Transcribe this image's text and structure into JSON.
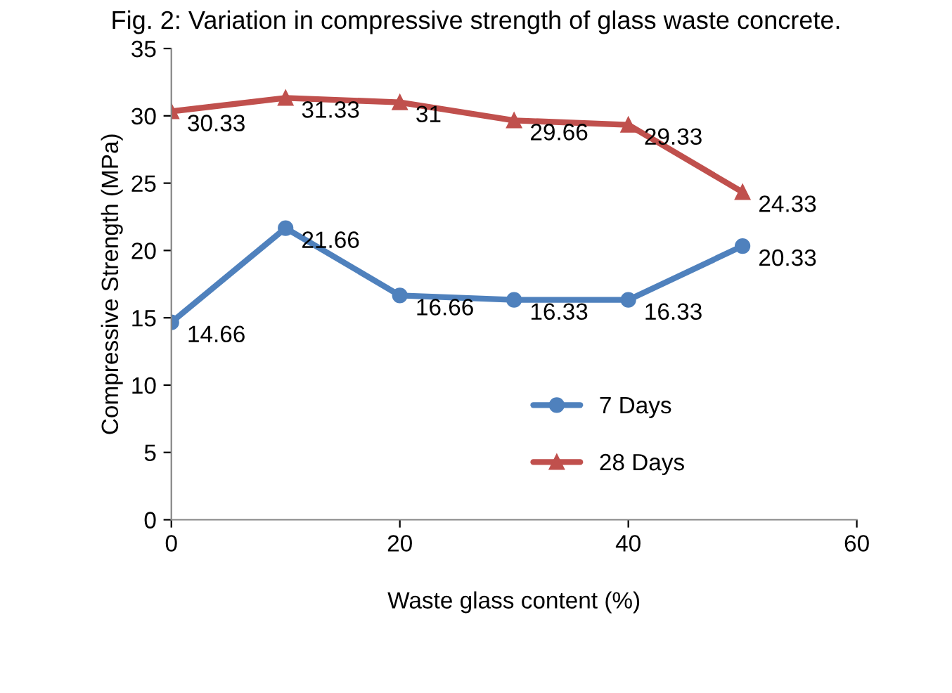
{
  "chart_data": {
    "type": "line",
    "title": "Fig. 2: Variation in compressive strength of glass waste concrete.",
    "xlabel": "Waste glass content (%)",
    "ylabel": "Compressive Strength (MPa)",
    "x": [
      0,
      10,
      20,
      30,
      40,
      50
    ],
    "series": [
      {
        "name": "7 Days",
        "color": "#4f81bd",
        "marker": "circle",
        "values": [
          14.66,
          21.66,
          16.66,
          16.33,
          16.33,
          20.33
        ]
      },
      {
        "name": "28 Days",
        "color": "#c0504d",
        "marker": "triangle",
        "values": [
          30.33,
          31.33,
          31,
          29.66,
          29.33,
          24.33
        ]
      }
    ],
    "xlim": [
      0,
      60
    ],
    "xticks": [
      0,
      20,
      40,
      60
    ],
    "ylim": [
      0,
      35
    ],
    "yticks": [
      0,
      5,
      10,
      15,
      20,
      25,
      30,
      35
    ],
    "data_labels": true,
    "legend": "bottom right",
    "grid": false,
    "line_style": "solid"
  }
}
